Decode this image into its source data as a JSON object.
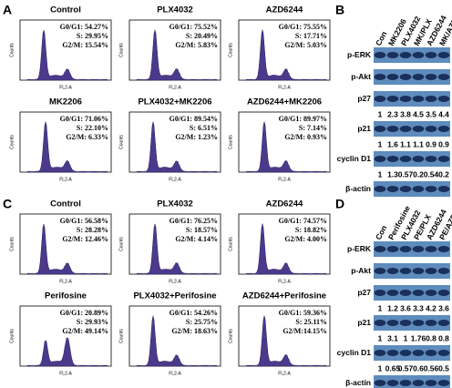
{
  "axis": {
    "x": "FL2-A",
    "y": "Counts"
  },
  "panels": [
    {
      "label": "A",
      "plots": [
        {
          "title": "Control",
          "stats": [
            "G0/G1: 54.27%",
            "S: 29.95%",
            "G2/M: 15.54%"
          ]
        },
        {
          "title": "PLX4032",
          "stats": [
            "G0/G1: 75.52%",
            "S: 20.49%",
            "G2/M: 5.83%"
          ]
        },
        {
          "title": "AZD6244",
          "stats": [
            "G0/G1: 75.55%",
            "S: 17.71%",
            "G2/M: 5.03%"
          ]
        },
        {
          "title": "MK2206",
          "stats": [
            "G0/G1: 71.06%",
            "S: 22.10%",
            "G2/M: 6.33%"
          ]
        },
        {
          "title": "PLX4032+MK2206",
          "stats": [
            "G0/G1: 89.54%",
            "S: 6.51%",
            "G2/M: 1.23%"
          ]
        },
        {
          "title": "AZD6244+MK2206",
          "stats": [
            "G0/G1: 89.97%",
            "S: 7.14%",
            "G2/M: 0.93%"
          ]
        }
      ]
    },
    {
      "label": "B",
      "lanes": [
        "Con",
        "MK2206",
        "PLX4032",
        "MK/PLX",
        "AZD6244",
        "MK/AZD"
      ],
      "rows": [
        {
          "name": "p-ERK"
        },
        {
          "name": "p-Akt"
        },
        {
          "name": "p27",
          "quant": [
            1,
            2.3,
            3.8,
            4.5,
            3.5,
            4.4
          ]
        },
        {
          "name": "p21",
          "quant": [
            1,
            1.6,
            1.1,
            1.1,
            0.9,
            0.9
          ]
        },
        {
          "name": "cyclin D1",
          "quant": [
            1,
            1.3,
            0.57,
            0.2,
            0.54,
            0.2
          ]
        },
        {
          "name": "β-actin"
        }
      ]
    },
    {
      "label": "C",
      "plots": [
        {
          "title": "Control",
          "stats": [
            "G0/G1: 56.58%",
            "S: 28.28%",
            "G2/M: 12.46%"
          ]
        },
        {
          "title": "PLX4032",
          "stats": [
            "G0/G1: 76.25%",
            "S: 18.57%",
            "G2/M: 4.14%"
          ]
        },
        {
          "title": "AZD6244",
          "stats": [
            "G0/G1: 74.57%",
            "S: 18.82%",
            "G2/M: 4.00%"
          ]
        },
        {
          "title": "Perifosine",
          "stats": [
            "G0/G1: 20.89%",
            "S: 29.93%",
            "G2/M: 49.14%"
          ]
        },
        {
          "title": "PLX4032+Perifosine",
          "stats": [
            "G0/G1: 54.26%",
            "S: 25.75%",
            "G2/M: 18.63%"
          ]
        },
        {
          "title": "AZD6244+Perifosine",
          "stats": [
            "G0/G1: 59.36%",
            "S: 25.11%",
            "G2/M:14.15%"
          ]
        }
      ]
    },
    {
      "label": "D",
      "lanes": [
        "Con",
        "Perifosine",
        "PLX4032",
        "PE/PLX",
        "AZD6244",
        "PE/AZD"
      ],
      "rows": [
        {
          "name": "p-ERK"
        },
        {
          "name": "p-Akt"
        },
        {
          "name": "p27",
          "quant": [
            1,
            1.2,
            3.6,
            3.3,
            4.2,
            3.6
          ]
        },
        {
          "name": "p21",
          "quant": [
            1,
            3.1,
            1,
            1.76,
            0.8,
            0.8
          ]
        },
        {
          "name": "cyclin D1",
          "quant": [
            1,
            0.65,
            0.57,
            0.6,
            0.56,
            0.5
          ]
        },
        {
          "name": "β-actin"
        }
      ]
    }
  ]
}
